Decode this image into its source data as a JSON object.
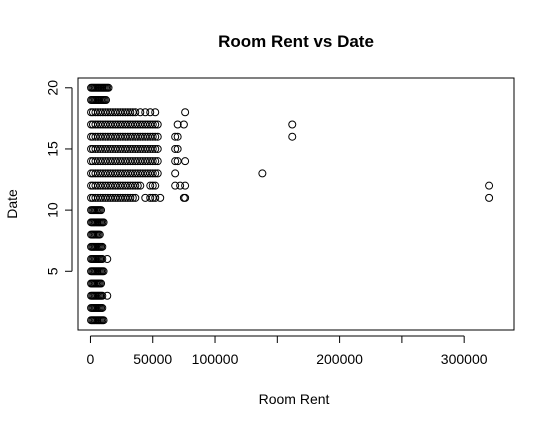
{
  "chart_data": {
    "type": "scatter",
    "title": "Room Rent vs Date",
    "xlabel": "Room Rent",
    "ylabel": "Date",
    "xlim": [
      -10000,
      340000
    ],
    "ylim": [
      0.2,
      20.8
    ],
    "x_ticks": [
      0,
      50000,
      100000,
      200000,
      300000
    ],
    "x_tick_labels": [
      "0",
      "50000",
      "100000",
      "200000",
      "300000"
    ],
    "x_minor_ticks": [
      150000,
      250000
    ],
    "y_ticks": [
      5,
      10,
      15,
      20
    ],
    "y_tick_labels": [
      "5",
      "10",
      "15",
      "20"
    ],
    "grid": false,
    "legend": "none",
    "marker": "open-circle",
    "color": "#000000",
    "points": [
      [
        500,
        1
      ],
      [
        1500,
        1
      ],
      [
        2500,
        1
      ],
      [
        3500,
        1
      ],
      [
        4500,
        1
      ],
      [
        5500,
        1
      ],
      [
        6500,
        1
      ],
      [
        7500,
        1
      ],
      [
        8500,
        1
      ],
      [
        9500,
        1
      ],
      [
        10500,
        1
      ],
      [
        500,
        2
      ],
      [
        1500,
        2
      ],
      [
        2500,
        2
      ],
      [
        3500,
        2
      ],
      [
        4500,
        2
      ],
      [
        5500,
        2
      ],
      [
        6500,
        2
      ],
      [
        7500,
        2
      ],
      [
        8500,
        2
      ],
      [
        9500,
        2
      ],
      [
        500,
        3
      ],
      [
        1500,
        3
      ],
      [
        2500,
        3
      ],
      [
        3500,
        3
      ],
      [
        4500,
        3
      ],
      [
        5500,
        3
      ],
      [
        6500,
        3
      ],
      [
        7500,
        3
      ],
      [
        8500,
        3
      ],
      [
        9500,
        3
      ],
      [
        13500,
        3
      ],
      [
        500,
        4
      ],
      [
        1500,
        4
      ],
      [
        2500,
        4
      ],
      [
        3500,
        4
      ],
      [
        4500,
        4
      ],
      [
        5500,
        4
      ],
      [
        6500,
        4
      ],
      [
        7500,
        4
      ],
      [
        8500,
        4
      ],
      [
        500,
        5
      ],
      [
        1500,
        5
      ],
      [
        2500,
        5
      ],
      [
        3500,
        5
      ],
      [
        4500,
        5
      ],
      [
        5500,
        5
      ],
      [
        6500,
        5
      ],
      [
        7500,
        5
      ],
      [
        8500,
        5
      ],
      [
        9500,
        5
      ],
      [
        10500,
        5
      ],
      [
        500,
        6
      ],
      [
        1500,
        6
      ],
      [
        2500,
        6
      ],
      [
        3500,
        6
      ],
      [
        4500,
        6
      ],
      [
        5500,
        6
      ],
      [
        6500,
        6
      ],
      [
        7500,
        6
      ],
      [
        8500,
        6
      ],
      [
        9500,
        6
      ],
      [
        13500,
        6
      ],
      [
        500,
        7
      ],
      [
        1500,
        7
      ],
      [
        2500,
        7
      ],
      [
        3500,
        7
      ],
      [
        4500,
        7
      ],
      [
        5500,
        7
      ],
      [
        6500,
        7
      ],
      [
        7500,
        7
      ],
      [
        8500,
        7
      ],
      [
        9500,
        7
      ],
      [
        500,
        8
      ],
      [
        1500,
        8
      ],
      [
        2500,
        8
      ],
      [
        3500,
        8
      ],
      [
        4500,
        8
      ],
      [
        5500,
        8
      ],
      [
        6500,
        8
      ],
      [
        7500,
        8
      ],
      [
        500,
        9
      ],
      [
        1500,
        9
      ],
      [
        2500,
        9
      ],
      [
        3500,
        9
      ],
      [
        4500,
        9
      ],
      [
        5500,
        9
      ],
      [
        6500,
        9
      ],
      [
        7500,
        9
      ],
      [
        8500,
        9
      ],
      [
        9500,
        9
      ],
      [
        10500,
        9
      ],
      [
        500,
        10
      ],
      [
        1500,
        10
      ],
      [
        2500,
        10
      ],
      [
        3500,
        10
      ],
      [
        4500,
        10
      ],
      [
        5500,
        10
      ],
      [
        6500,
        10
      ],
      [
        7500,
        10
      ],
      [
        8500,
        10
      ],
      [
        500,
        11
      ],
      [
        2000,
        11
      ],
      [
        4000,
        11
      ],
      [
        6000,
        11
      ],
      [
        8000,
        11
      ],
      [
        10000,
        11
      ],
      [
        12000,
        11
      ],
      [
        14000,
        11
      ],
      [
        16000,
        11
      ],
      [
        18000,
        11
      ],
      [
        20000,
        11
      ],
      [
        22000,
        11
      ],
      [
        24000,
        11
      ],
      [
        26000,
        11
      ],
      [
        28000,
        11
      ],
      [
        30000,
        11
      ],
      [
        32000,
        11
      ],
      [
        34000,
        11
      ],
      [
        36000,
        11
      ],
      [
        44000,
        11
      ],
      [
        48000,
        11
      ],
      [
        50000,
        11
      ],
      [
        52000,
        11
      ],
      [
        56000,
        11
      ],
      [
        75000,
        11
      ],
      [
        76000,
        11
      ],
      [
        320000,
        11
      ],
      [
        500,
        12
      ],
      [
        2000,
        12
      ],
      [
        4000,
        12
      ],
      [
        6000,
        12
      ],
      [
        8000,
        12
      ],
      [
        10000,
        12
      ],
      [
        12000,
        12
      ],
      [
        14000,
        12
      ],
      [
        16000,
        12
      ],
      [
        18000,
        12
      ],
      [
        20000,
        12
      ],
      [
        22000,
        12
      ],
      [
        24000,
        12
      ],
      [
        26000,
        12
      ],
      [
        28000,
        12
      ],
      [
        30000,
        12
      ],
      [
        32000,
        12
      ],
      [
        34000,
        12
      ],
      [
        36000,
        12
      ],
      [
        38000,
        12
      ],
      [
        40000,
        12
      ],
      [
        48000,
        12
      ],
      [
        50000,
        12
      ],
      [
        52000,
        12
      ],
      [
        68000,
        12
      ],
      [
        72000,
        12
      ],
      [
        76000,
        12
      ],
      [
        320000,
        12
      ],
      [
        500,
        13
      ],
      [
        2000,
        13
      ],
      [
        4000,
        13
      ],
      [
        6000,
        13
      ],
      [
        8000,
        13
      ],
      [
        10000,
        13
      ],
      [
        12000,
        13
      ],
      [
        14000,
        13
      ],
      [
        16000,
        13
      ],
      [
        18000,
        13
      ],
      [
        20000,
        13
      ],
      [
        22000,
        13
      ],
      [
        24000,
        13
      ],
      [
        26000,
        13
      ],
      [
        28000,
        13
      ],
      [
        30000,
        13
      ],
      [
        32000,
        13
      ],
      [
        34000,
        13
      ],
      [
        36000,
        13
      ],
      [
        38000,
        13
      ],
      [
        40000,
        13
      ],
      [
        42000,
        13
      ],
      [
        44000,
        13
      ],
      [
        46000,
        13
      ],
      [
        48000,
        13
      ],
      [
        50000,
        13
      ],
      [
        52000,
        13
      ],
      [
        54000,
        13
      ],
      [
        68000,
        13
      ],
      [
        138000,
        13
      ],
      [
        500,
        14
      ],
      [
        2000,
        14
      ],
      [
        4000,
        14
      ],
      [
        6000,
        14
      ],
      [
        8000,
        14
      ],
      [
        10000,
        14
      ],
      [
        12000,
        14
      ],
      [
        14000,
        14
      ],
      [
        16000,
        14
      ],
      [
        18000,
        14
      ],
      [
        20000,
        14
      ],
      [
        22000,
        14
      ],
      [
        24000,
        14
      ],
      [
        26000,
        14
      ],
      [
        28000,
        14
      ],
      [
        30000,
        14
      ],
      [
        32000,
        14
      ],
      [
        34000,
        14
      ],
      [
        36000,
        14
      ],
      [
        38000,
        14
      ],
      [
        40000,
        14
      ],
      [
        42000,
        14
      ],
      [
        44000,
        14
      ],
      [
        46000,
        14
      ],
      [
        48000,
        14
      ],
      [
        50000,
        14
      ],
      [
        52000,
        14
      ],
      [
        54000,
        14
      ],
      [
        68000,
        14
      ],
      [
        70000,
        14
      ],
      [
        76000,
        14
      ],
      [
        500,
        15
      ],
      [
        2000,
        15
      ],
      [
        4000,
        15
      ],
      [
        6000,
        15
      ],
      [
        8000,
        15
      ],
      [
        10000,
        15
      ],
      [
        12000,
        15
      ],
      [
        14000,
        15
      ],
      [
        16000,
        15
      ],
      [
        18000,
        15
      ],
      [
        20000,
        15
      ],
      [
        22000,
        15
      ],
      [
        24000,
        15
      ],
      [
        26000,
        15
      ],
      [
        28000,
        15
      ],
      [
        30000,
        15
      ],
      [
        32000,
        15
      ],
      [
        34000,
        15
      ],
      [
        36000,
        15
      ],
      [
        38000,
        15
      ],
      [
        40000,
        15
      ],
      [
        42000,
        15
      ],
      [
        44000,
        15
      ],
      [
        46000,
        15
      ],
      [
        48000,
        15
      ],
      [
        50000,
        15
      ],
      [
        52000,
        15
      ],
      [
        54000,
        15
      ],
      [
        68000,
        15
      ],
      [
        70000,
        15
      ],
      [
        500,
        16
      ],
      [
        2000,
        16
      ],
      [
        4000,
        16
      ],
      [
        6000,
        16
      ],
      [
        8000,
        16
      ],
      [
        10000,
        16
      ],
      [
        12000,
        16
      ],
      [
        14000,
        16
      ],
      [
        16000,
        16
      ],
      [
        18000,
        16
      ],
      [
        20000,
        16
      ],
      [
        22000,
        16
      ],
      [
        24000,
        16
      ],
      [
        26000,
        16
      ],
      [
        28000,
        16
      ],
      [
        30000,
        16
      ],
      [
        32000,
        16
      ],
      [
        34000,
        16
      ],
      [
        36000,
        16
      ],
      [
        38000,
        16
      ],
      [
        40000,
        16
      ],
      [
        42000,
        16
      ],
      [
        44000,
        16
      ],
      [
        46000,
        16
      ],
      [
        48000,
        16
      ],
      [
        50000,
        16
      ],
      [
        52000,
        16
      ],
      [
        54000,
        16
      ],
      [
        68000,
        16
      ],
      [
        70000,
        16
      ],
      [
        162000,
        16
      ],
      [
        500,
        17
      ],
      [
        2000,
        17
      ],
      [
        4000,
        17
      ],
      [
        6000,
        17
      ],
      [
        8000,
        17
      ],
      [
        10000,
        17
      ],
      [
        12000,
        17
      ],
      [
        14000,
        17
      ],
      [
        16000,
        17
      ],
      [
        18000,
        17
      ],
      [
        20000,
        17
      ],
      [
        22000,
        17
      ],
      [
        24000,
        17
      ],
      [
        26000,
        17
      ],
      [
        28000,
        17
      ],
      [
        30000,
        17
      ],
      [
        32000,
        17
      ],
      [
        34000,
        17
      ],
      [
        36000,
        17
      ],
      [
        38000,
        17
      ],
      [
        40000,
        17
      ],
      [
        42000,
        17
      ],
      [
        44000,
        17
      ],
      [
        46000,
        17
      ],
      [
        48000,
        17
      ],
      [
        50000,
        17
      ],
      [
        52000,
        17
      ],
      [
        54000,
        17
      ],
      [
        70000,
        17
      ],
      [
        75000,
        17
      ],
      [
        162000,
        17
      ],
      [
        500,
        18
      ],
      [
        2000,
        18
      ],
      [
        4000,
        18
      ],
      [
        6000,
        18
      ],
      [
        8000,
        18
      ],
      [
        10000,
        18
      ],
      [
        12000,
        18
      ],
      [
        14000,
        18
      ],
      [
        16000,
        18
      ],
      [
        18000,
        18
      ],
      [
        20000,
        18
      ],
      [
        22000,
        18
      ],
      [
        24000,
        18
      ],
      [
        26000,
        18
      ],
      [
        28000,
        18
      ],
      [
        30000,
        18
      ],
      [
        32000,
        18
      ],
      [
        34000,
        18
      ],
      [
        36000,
        18
      ],
      [
        40000,
        18
      ],
      [
        44000,
        18
      ],
      [
        48000,
        18
      ],
      [
        52000,
        18
      ],
      [
        76000,
        18
      ],
      [
        500,
        19
      ],
      [
        1500,
        19
      ],
      [
        2500,
        19
      ],
      [
        3500,
        19
      ],
      [
        4500,
        19
      ],
      [
        5500,
        19
      ],
      [
        6500,
        19
      ],
      [
        7500,
        19
      ],
      [
        8500,
        19
      ],
      [
        9500,
        19
      ],
      [
        10500,
        19
      ],
      [
        11500,
        19
      ],
      [
        12500,
        19
      ],
      [
        500,
        20
      ],
      [
        1500,
        20
      ],
      [
        2500,
        20
      ],
      [
        3500,
        20
      ],
      [
        4500,
        20
      ],
      [
        5500,
        20
      ],
      [
        6500,
        20
      ],
      [
        7500,
        20
      ],
      [
        8500,
        20
      ],
      [
        9500,
        20
      ],
      [
        10500,
        20
      ],
      [
        11500,
        20
      ],
      [
        12500,
        20
      ],
      [
        13500,
        20
      ],
      [
        14500,
        20
      ]
    ]
  }
}
